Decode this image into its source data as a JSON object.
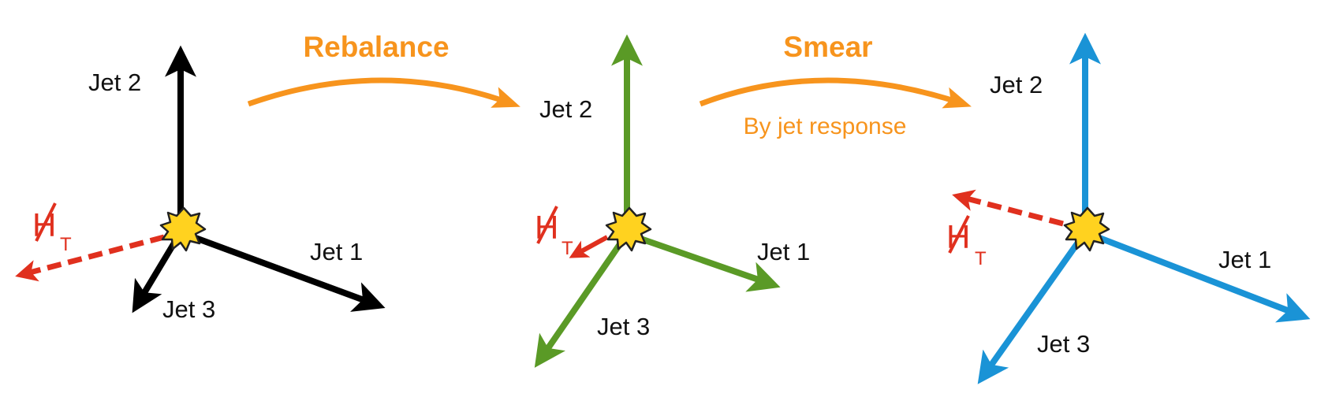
{
  "colors": {
    "original": "#000000",
    "rebalanced": "#5a9a26",
    "smeared": "#1a93d6",
    "met": "#e0301e",
    "process": "#f7941d",
    "vertex_fill": "#ffd21f",
    "vertex_stroke": "#222222"
  },
  "steps": {
    "rebalance": {
      "label": "Rebalance"
    },
    "smear": {
      "label": "Smear",
      "sublabel": "By jet response"
    }
  },
  "panels": [
    {
      "id": "original",
      "jet1_label": "Jet 1",
      "jet2_label": "Jet 2",
      "jet3_label": "Jet 3",
      "met_letter": "H",
      "met_subscript": "T",
      "met_style": "large"
    },
    {
      "id": "rebalanced",
      "jet1_label": "Jet 1",
      "jet2_label": "Jet 2",
      "jet3_label": "Jet 3",
      "met_letter": "H",
      "met_subscript": "T",
      "met_style": "small"
    },
    {
      "id": "smeared",
      "jet1_label": "Jet 1",
      "jet2_label": "Jet 2",
      "jet3_label": "Jet 3",
      "met_letter": "H",
      "met_subscript": "T",
      "met_style": "large"
    }
  ]
}
